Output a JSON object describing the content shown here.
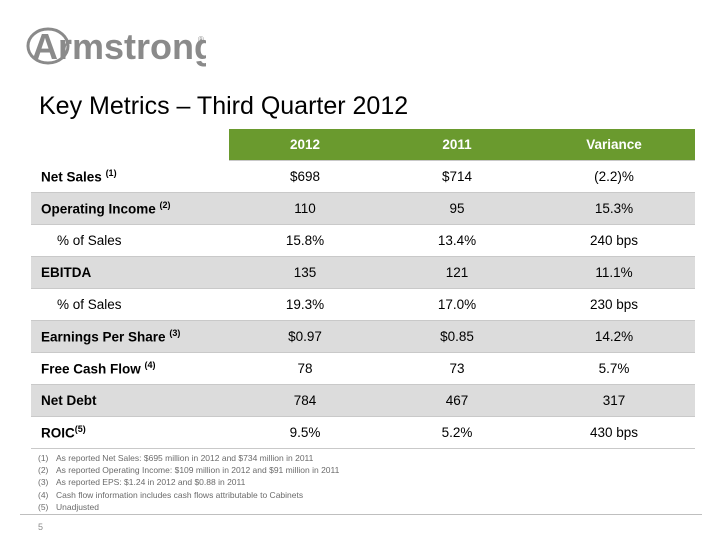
{
  "brand": {
    "name": "Armstrong",
    "color": "#8a8a8a"
  },
  "title": "Key Metrics – Third Quarter 2012",
  "table": {
    "headers": [
      "2012",
      "2011",
      "Variance"
    ],
    "header_color": "#6a9a2e",
    "rows": [
      {
        "label": "Net Sales",
        "note": "(1)",
        "sub": false,
        "shade": false,
        "values": [
          "$698",
          "$714",
          "(2.2)%"
        ]
      },
      {
        "label": "Operating Income",
        "note": "(2)",
        "sub": false,
        "shade": true,
        "values": [
          "110",
          "95",
          "15.3%"
        ]
      },
      {
        "label": "% of Sales",
        "note": "",
        "sub": true,
        "shade": false,
        "values": [
          "15.8%",
          "13.4%",
          "240 bps"
        ]
      },
      {
        "label": "EBITDA",
        "note": "",
        "sub": false,
        "shade": true,
        "values": [
          "135",
          "121",
          "11.1%"
        ]
      },
      {
        "label": "% of Sales",
        "note": "",
        "sub": true,
        "shade": false,
        "values": [
          "19.3%",
          "17.0%",
          "230 bps"
        ]
      },
      {
        "label": "Earnings Per Share",
        "note": "(3)",
        "sub": false,
        "shade": true,
        "values": [
          "$0.97",
          "$0.85",
          "14.2%"
        ]
      },
      {
        "label": "Free Cash Flow",
        "note": "(4)",
        "sub": false,
        "shade": false,
        "values": [
          "78",
          "73",
          "5.7%"
        ]
      },
      {
        "label": "Net Debt",
        "note": "",
        "sub": false,
        "shade": true,
        "values": [
          "784",
          "467",
          "317"
        ]
      },
      {
        "label": "ROIC",
        "note": "(5)",
        "sub": false,
        "shade": false,
        "values": [
          "9.5%",
          "5.2%",
          "430 bps"
        ]
      }
    ]
  },
  "footnotes": [
    {
      "n": "(1)",
      "text": "As reported Net Sales:  $695 million in 2012 and $734 million in 2011"
    },
    {
      "n": "(2)",
      "text": "As reported Operating Income:  $109 million in 2012 and $91 million in 2011"
    },
    {
      "n": "(3)",
      "text": "As reported EPS:  $1.24 in 2012 and $0.88 in 2011"
    },
    {
      "n": "(4)",
      "text": "Cash flow information includes cash flows attributable to Cabinets"
    },
    {
      "n": "(5)",
      "text": "Unadjusted"
    }
  ],
  "page_number": "5"
}
